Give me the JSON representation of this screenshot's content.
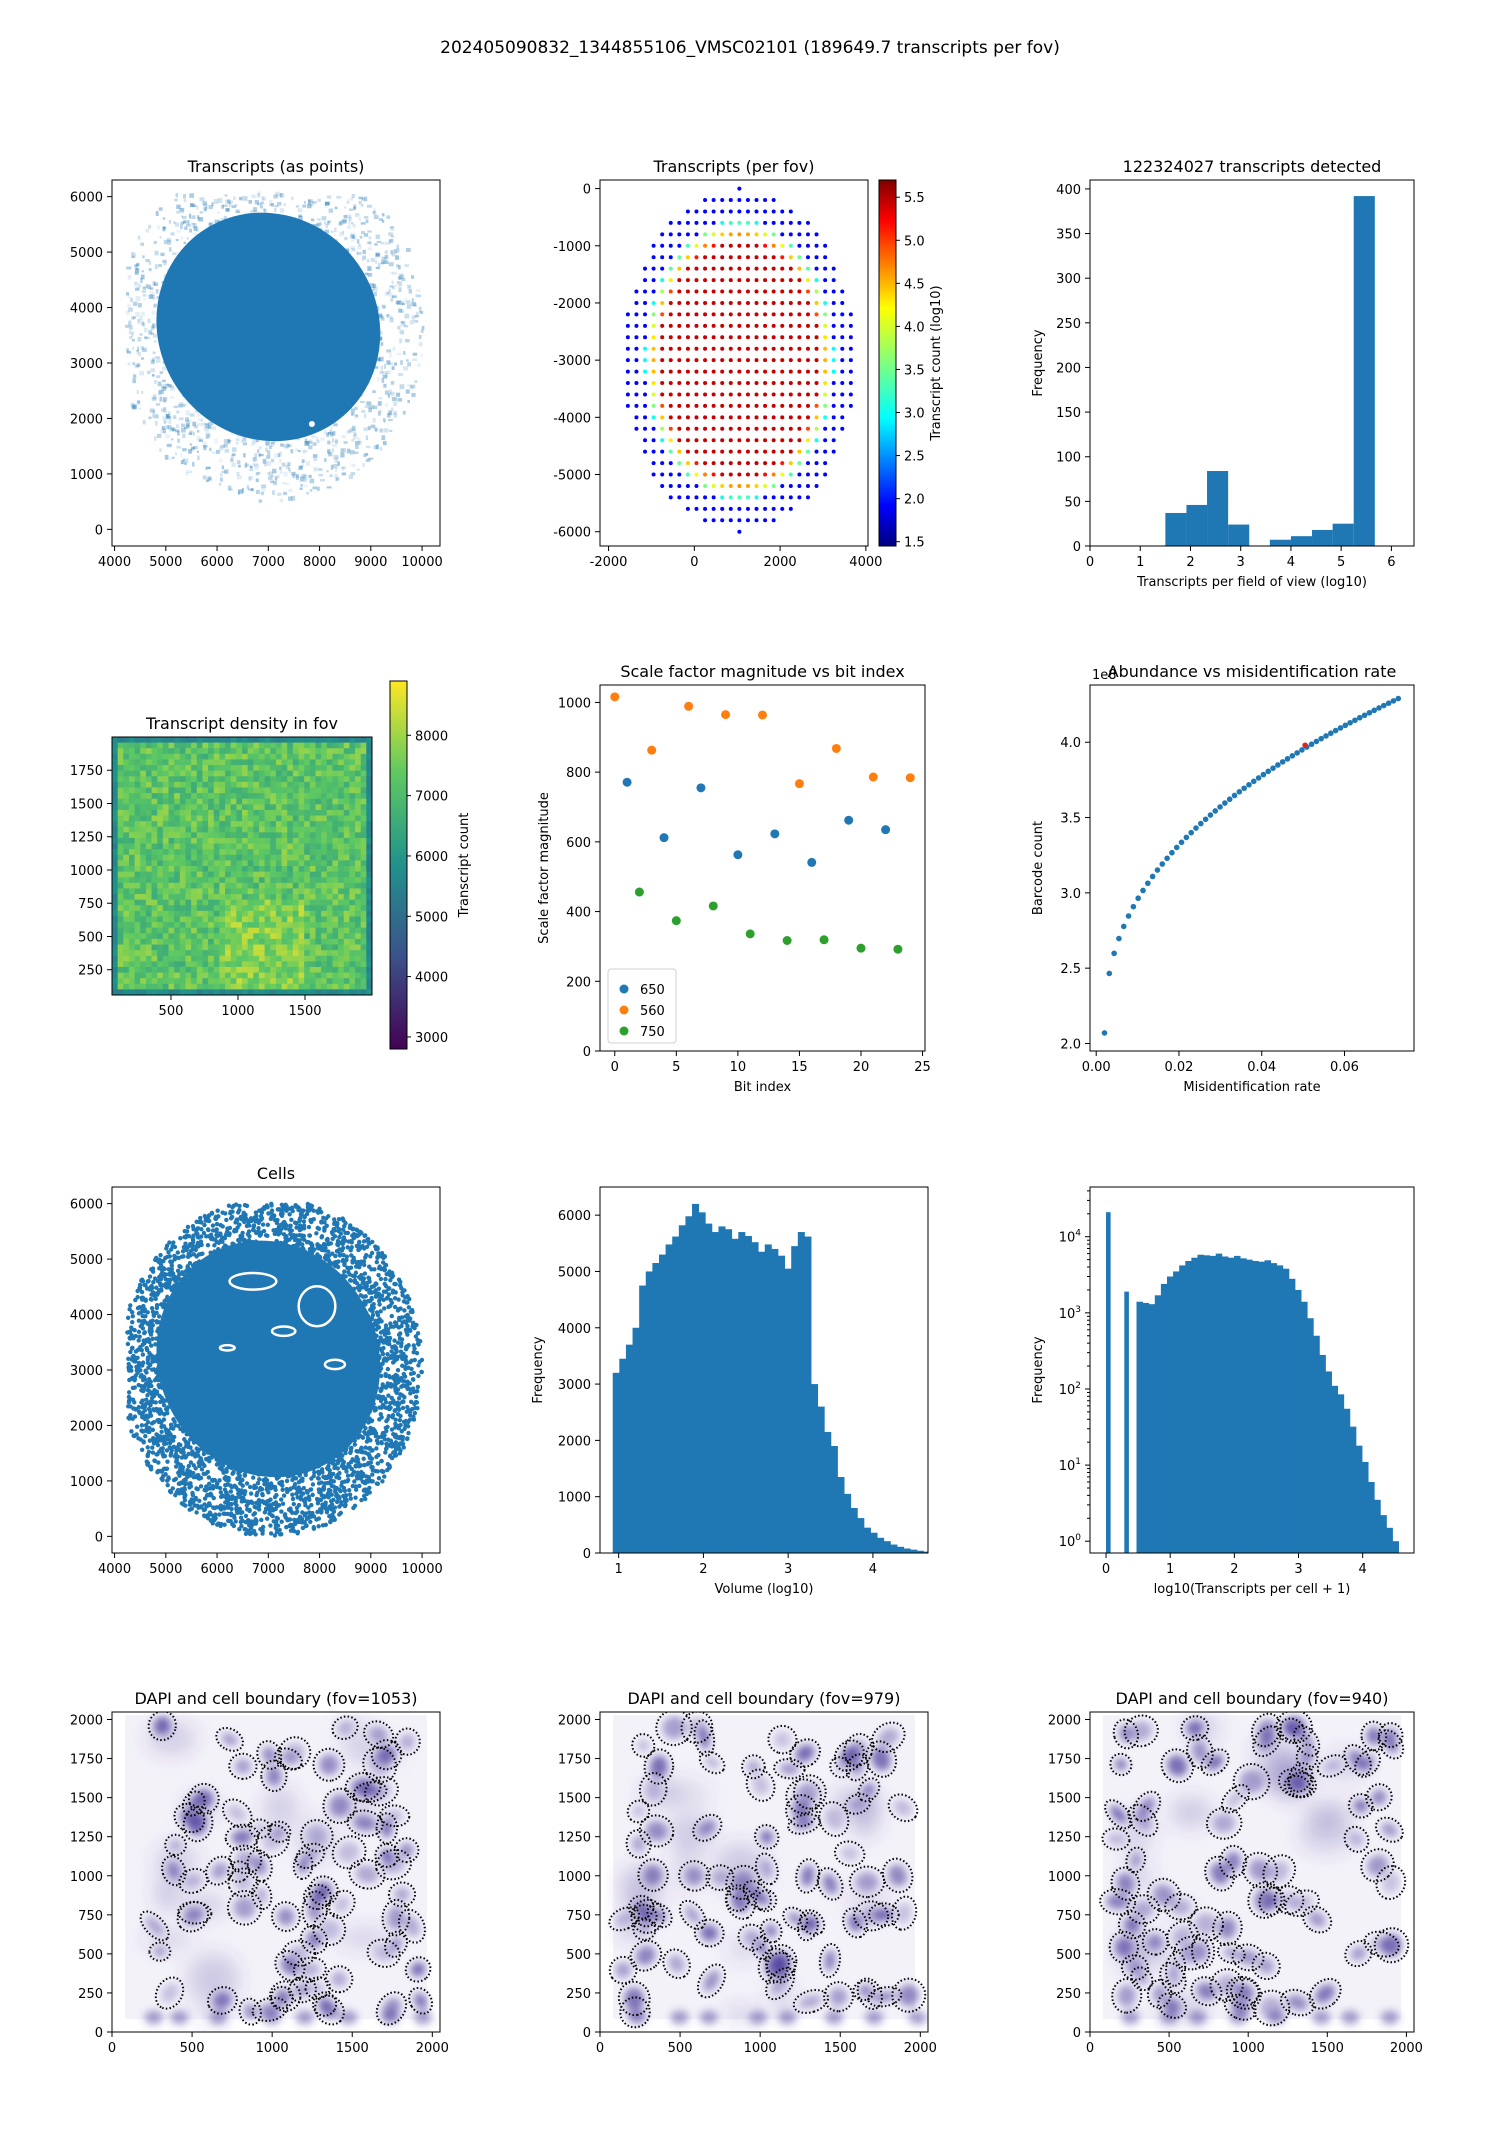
{
  "figure": {
    "suptitle": "202405090832_1344855106_VMSC02101 (189649.7 transcripts per fov)"
  },
  "colors": {
    "blue": "#1f77b4",
    "orange": "#ff7f0e",
    "green": "#2ca02c",
    "dapi": "#4b3c9b",
    "boundary": "#000000"
  },
  "chart_data": [
    {
      "id": "transcripts-points",
      "type": "scatter",
      "title": "Transcripts (as points)",
      "xlabel": "",
      "ylabel": "",
      "xlim": [
        3950,
        10350
      ],
      "ylim": [
        -300,
        6300
      ],
      "xticks": [
        4000,
        5000,
        6000,
        7000,
        8000,
        9000,
        10000
      ],
      "yticks": [
        0,
        1000,
        2000,
        3000,
        4000,
        5000,
        6000
      ],
      "grid": false,
      "description_shape": "dense blob of points, center approx (7000, 3600)",
      "blob_center": [
        7000,
        3650
      ],
      "blob_radius": [
        2300,
        2500
      ],
      "rotation_deg": -35
    },
    {
      "id": "transcripts-fov",
      "type": "scatter",
      "title": "Transcripts (per fov)",
      "xlabel": "",
      "ylabel": "",
      "xlim": [
        -2200,
        4050
      ],
      "ylim": [
        -6250,
        150
      ],
      "xticks": [
        -2000,
        0,
        2000,
        4000
      ],
      "yticks": [
        0,
        -1000,
        -2000,
        -3000,
        -4000,
        -5000,
        -6000
      ],
      "colorbar": {
        "label": "Transcript count (log10)",
        "range": [
          1.45,
          5.7
        ],
        "ticks": [
          1.5,
          2.0,
          2.5,
          3.0,
          3.5,
          4.0,
          4.5,
          5.0,
          5.5
        ],
        "colormap": "jet"
      },
      "grid_center": [
        1050,
        -3000
      ],
      "grid_spacing": 200
    },
    {
      "id": "transcripts-hist",
      "type": "bar",
      "title": "122324027 transcripts detected",
      "xlabel": "Transcripts per field of view (log10)",
      "ylabel": "Frequency",
      "xlim": [
        0,
        6.45
      ],
      "ylim": [
        0,
        410
      ],
      "xticks": [
        0,
        1,
        2,
        3,
        4,
        5,
        6
      ],
      "yticks": [
        0,
        50,
        100,
        150,
        200,
        250,
        300,
        350,
        400
      ],
      "bin_edges": [
        1.5,
        1.92,
        2.33,
        2.75,
        3.17,
        3.58,
        4.0,
        4.42,
        4.83,
        5.25,
        5.67
      ],
      "values": [
        37,
        46,
        84,
        24,
        0,
        7,
        11,
        18,
        25,
        392
      ]
    },
    {
      "id": "density-fov",
      "type": "heatmap",
      "title": "Transcript density in fov",
      "xlim": [
        60,
        2000
      ],
      "ylim": [
        60,
        2000
      ],
      "xticks": [
        500,
        1000,
        1500
      ],
      "yticks": [
        250,
        500,
        750,
        1000,
        1250,
        1500,
        1750
      ],
      "colorbar": {
        "label": "Transcript count",
        "range": [
          2800,
          8900
        ],
        "ticks": [
          3000,
          4000,
          5000,
          6000,
          7000,
          8000
        ],
        "colormap": "viridis"
      }
    },
    {
      "id": "scale-factor",
      "type": "scatter",
      "title": "Scale factor magnitude vs bit index",
      "xlabel": "Bit index",
      "ylabel": "Scale factor magnitude",
      "xlim": [
        -1.2,
        25.2
      ],
      "ylim": [
        0,
        1050
      ],
      "xticks": [
        0,
        5,
        10,
        15,
        20,
        25
      ],
      "yticks": [
        0,
        200,
        400,
        600,
        800,
        1000
      ],
      "legend": "lower-left",
      "series": [
        {
          "name": "650",
          "color": "#1f77b4",
          "x": [
            1,
            4,
            7,
            10,
            13,
            16,
            19,
            22
          ],
          "y": [
            771,
            612,
            755,
            563,
            623,
            541,
            662,
            635
          ]
        },
        {
          "name": "560",
          "color": "#ff7f0e",
          "x": [
            0,
            3,
            6,
            9,
            12,
            15,
            18,
            21,
            24
          ],
          "y": [
            1016,
            863,
            989,
            965,
            964,
            767,
            868,
            786,
            784
          ]
        },
        {
          "name": "750",
          "color": "#2ca02c",
          "x": [
            2,
            5,
            8,
            11,
            14,
            17,
            20,
            23
          ],
          "y": [
            456,
            374,
            416,
            336,
            317,
            319,
            295,
            292
          ]
        }
      ]
    },
    {
      "id": "abundance",
      "type": "scatter",
      "title": "Abundance vs misidentification rate",
      "xlabel": "Misidentification rate",
      "ylabel": "Barcode count",
      "xlim": [
        -0.0015,
        0.0768
      ],
      "ylim": [
        1.95,
        4.38
      ],
      "xticks": [
        0.0,
        0.02,
        0.04,
        0.06
      ],
      "xtick_labels": [
        "0.00",
        "0.02",
        "0.04",
        "0.06"
      ],
      "yticks": [
        2.0,
        2.5,
        3.0,
        3.5,
        4.0
      ],
      "ytick_labels": [
        "2.0",
        "2.5",
        "3.0",
        "3.5",
        "4.0"
      ],
      "offset_text": "1e8",
      "curve_x_range": [
        0.002,
        0.073
      ],
      "curve_y_range": [
        2.07,
        4.29
      ],
      "highlight_point": [
        0.0505,
        3.98
      ]
    },
    {
      "id": "cells",
      "type": "scatter",
      "title": "Cells",
      "xlabel": "",
      "ylabel": "",
      "xlim": [
        3950,
        10350
      ],
      "ylim": [
        -300,
        6300
      ],
      "xticks": [
        4000,
        5000,
        6000,
        7000,
        8000,
        9000,
        10000
      ],
      "yticks": [
        0,
        1000,
        2000,
        3000,
        4000,
        5000,
        6000
      ]
    },
    {
      "id": "volume-hist",
      "type": "bar",
      "title": "",
      "xlabel": "Volume (log10)",
      "ylabel": "Frequency",
      "xlim": [
        0.78,
        4.65
      ],
      "ylim": [
        0,
        6500
      ],
      "xticks": [
        1,
        2,
        3,
        4
      ],
      "yticks": [
        0,
        1000,
        2000,
        3000,
        4000,
        5000,
        6000
      ],
      "bin_start": 0.93,
      "bin_width": 0.078,
      "values": [
        3200,
        3450,
        3700,
        4000,
        4750,
        5000,
        5150,
        5300,
        5480,
        5620,
        5820,
        5980,
        6200,
        6050,
        5850,
        5700,
        5800,
        5750,
        5580,
        5700,
        5630,
        5520,
        5350,
        5480,
        5400,
        5280,
        5050,
        5450,
        5700,
        5620,
        3000,
        2600,
        2150,
        1900,
        1350,
        1050,
        800,
        620,
        450,
        360,
        270,
        210,
        150,
        110,
        80,
        60,
        40,
        25,
        15,
        10
      ]
    },
    {
      "id": "transcripts-per-cell",
      "type": "bar",
      "title": "",
      "xlabel": "log10(Transcripts per cell + 1)",
      "ylabel": "Frequency",
      "yscale": "log",
      "xlim": [
        -0.25,
        4.8
      ],
      "ylim": [
        0.7,
        45000
      ],
      "xticks": [
        0,
        1,
        2,
        3,
        4
      ],
      "ytick_exponents": [
        0,
        1,
        2,
        3,
        4
      ],
      "bin_edges": [
        0.0,
        0.095,
        0.19,
        0.285,
        0.38,
        0.475,
        0.57,
        0.665,
        0.76,
        0.855,
        0.95,
        1.045,
        1.14,
        1.235,
        1.33,
        1.425,
        1.52,
        1.615,
        1.71,
        1.805,
        1.9,
        1.995,
        2.09,
        2.185,
        2.28,
        2.375,
        2.47,
        2.565,
        2.66,
        2.755,
        2.85,
        2.945,
        3.04,
        3.135,
        3.23,
        3.325,
        3.42,
        3.515,
        3.61,
        3.705,
        3.8,
        3.895,
        3.99,
        4.085,
        4.18,
        4.275,
        4.37,
        4.465,
        4.56
      ],
      "values": [
        21000,
        0,
        0,
        1900,
        0,
        1400,
        1350,
        1300,
        1700,
        2400,
        3000,
        3500,
        4200,
        4800,
        5300,
        5800,
        5700,
        5600,
        6000,
        5500,
        5300,
        5600,
        5200,
        5000,
        4800,
        4700,
        4900,
        4500,
        4200,
        3800,
        2800,
        2000,
        1400,
        850,
        500,
        280,
        170,
        110,
        85,
        55,
        32,
        18,
        11,
        6,
        3.5,
        2.2,
        1.5,
        1
      ]
    },
    {
      "id": "dapi-1053",
      "type": "heatmap",
      "title": "DAPI and cell boundary (fov=1053)",
      "xlim": [
        0,
        2048
      ],
      "ylim": [
        0,
        2048
      ],
      "xticks": [
        0,
        500,
        1000,
        1500,
        2000
      ],
      "yticks": [
        0,
        250,
        500,
        750,
        1000,
        1250,
        1500,
        1750,
        2000
      ],
      "seed": 11
    },
    {
      "id": "dapi-979",
      "type": "heatmap",
      "title": "DAPI and cell boundary (fov=979)",
      "xlim": [
        0,
        2048
      ],
      "ylim": [
        0,
        2048
      ],
      "xticks": [
        0,
        500,
        1000,
        1500,
        2000
      ],
      "yticks": [
        0,
        250,
        500,
        750,
        1000,
        1250,
        1500,
        1750,
        2000
      ],
      "seed": 23
    },
    {
      "id": "dapi-940",
      "type": "heatmap",
      "title": "DAPI and cell boundary (fov=940)",
      "xlim": [
        0,
        2048
      ],
      "ylim": [
        0,
        2048
      ],
      "xticks": [
        0,
        500,
        1000,
        1500,
        2000
      ],
      "yticks": [
        0,
        250,
        500,
        750,
        1000,
        1250,
        1500,
        1750,
        2000
      ],
      "seed": 37
    }
  ]
}
